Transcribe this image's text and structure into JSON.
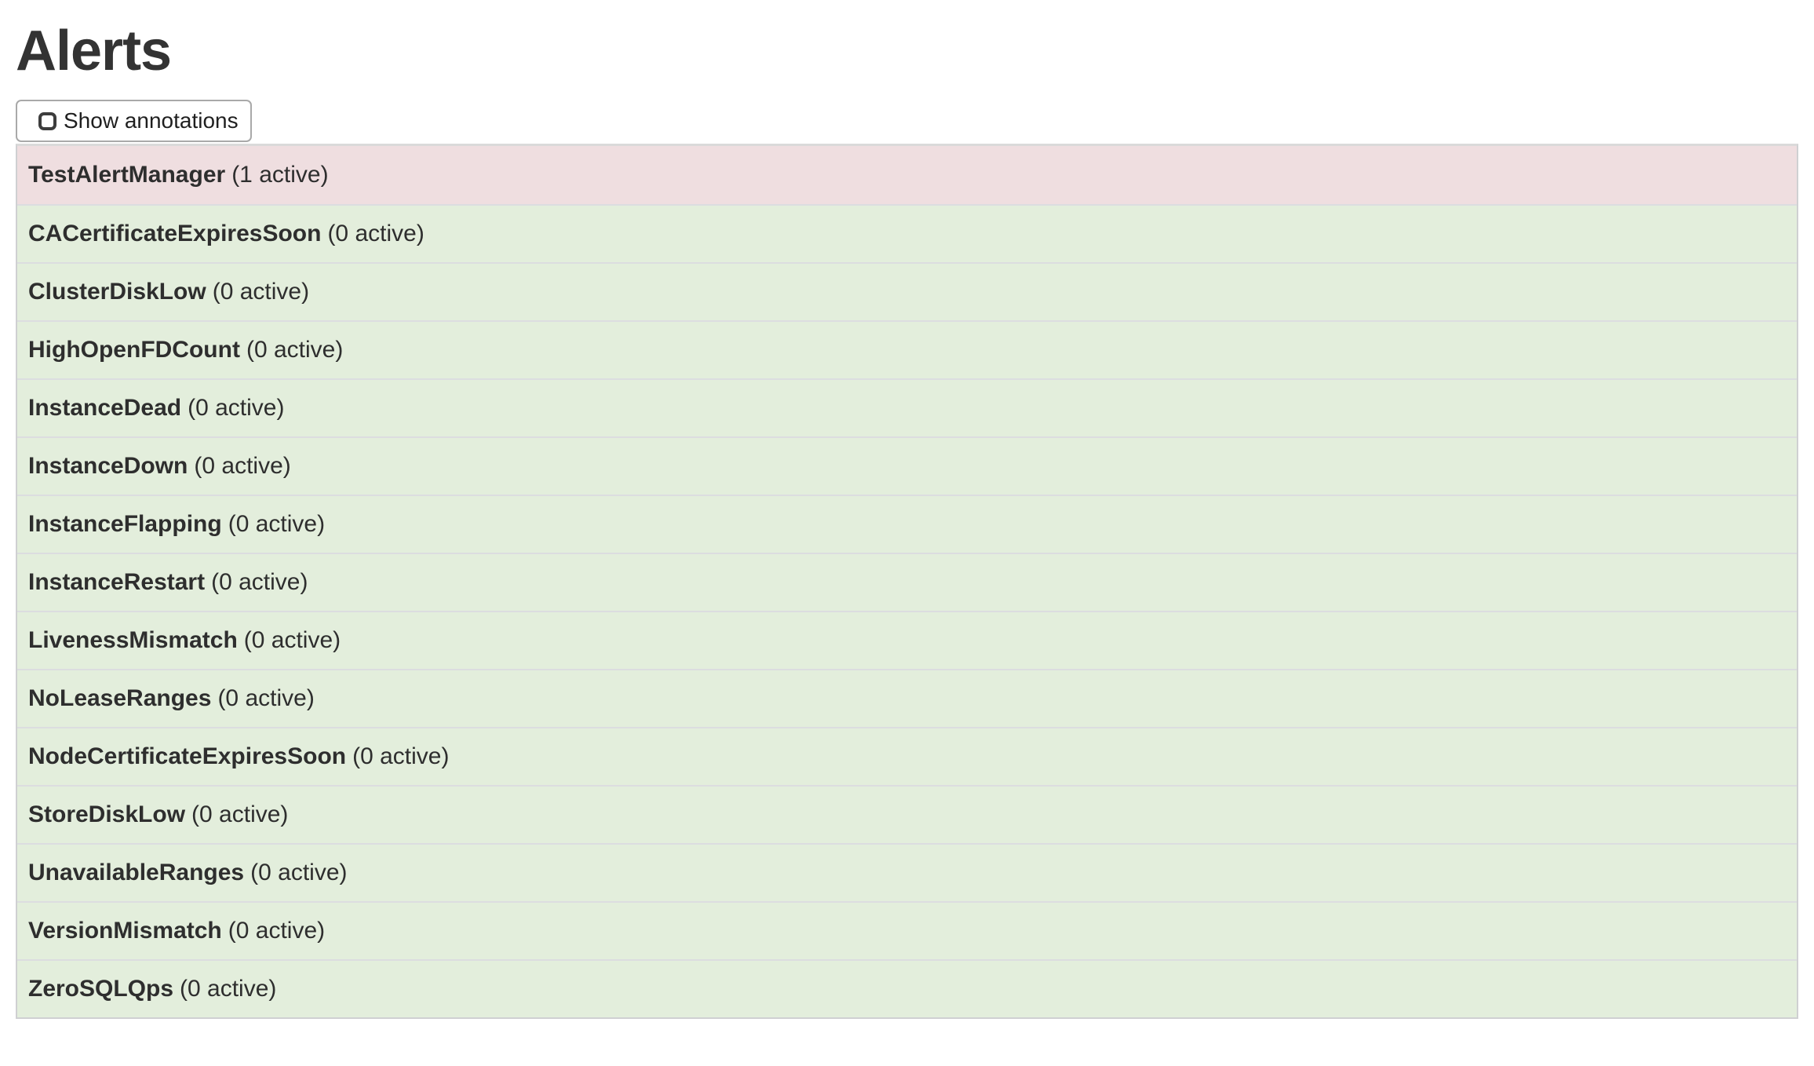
{
  "page": {
    "title": "Alerts"
  },
  "toolbar": {
    "show_annotations": {
      "label": "Show annotations",
      "checked": false
    }
  },
  "colors": {
    "firing_bg": "#efdee0",
    "inactive_bg": "#e3eedc",
    "table_border": "#cfd0d2",
    "row_divider": "#dcdde0",
    "text": "#2e2e2e"
  },
  "alerts": [
    {
      "name": "TestAlertManager",
      "active": 1,
      "active_label": "(1 active)",
      "state": "firing"
    },
    {
      "name": "CACertificateExpiresSoon",
      "active": 0,
      "active_label": "(0 active)",
      "state": "inactive"
    },
    {
      "name": "ClusterDiskLow",
      "active": 0,
      "active_label": "(0 active)",
      "state": "inactive"
    },
    {
      "name": "HighOpenFDCount",
      "active": 0,
      "active_label": "(0 active)",
      "state": "inactive"
    },
    {
      "name": "InstanceDead",
      "active": 0,
      "active_label": "(0 active)",
      "state": "inactive"
    },
    {
      "name": "InstanceDown",
      "active": 0,
      "active_label": "(0 active)",
      "state": "inactive"
    },
    {
      "name": "InstanceFlapping",
      "active": 0,
      "active_label": "(0 active)",
      "state": "inactive"
    },
    {
      "name": "InstanceRestart",
      "active": 0,
      "active_label": "(0 active)",
      "state": "inactive"
    },
    {
      "name": "LivenessMismatch",
      "active": 0,
      "active_label": "(0 active)",
      "state": "inactive"
    },
    {
      "name": "NoLeaseRanges",
      "active": 0,
      "active_label": "(0 active)",
      "state": "inactive"
    },
    {
      "name": "NodeCertificateExpiresSoon",
      "active": 0,
      "active_label": "(0 active)",
      "state": "inactive"
    },
    {
      "name": "StoreDiskLow",
      "active": 0,
      "active_label": "(0 active)",
      "state": "inactive"
    },
    {
      "name": "UnavailableRanges",
      "active": 0,
      "active_label": "(0 active)",
      "state": "inactive"
    },
    {
      "name": "VersionMismatch",
      "active": 0,
      "active_label": "(0 active)",
      "state": "inactive"
    },
    {
      "name": "ZeroSQLQps",
      "active": 0,
      "active_label": "(0 active)",
      "state": "inactive"
    }
  ]
}
